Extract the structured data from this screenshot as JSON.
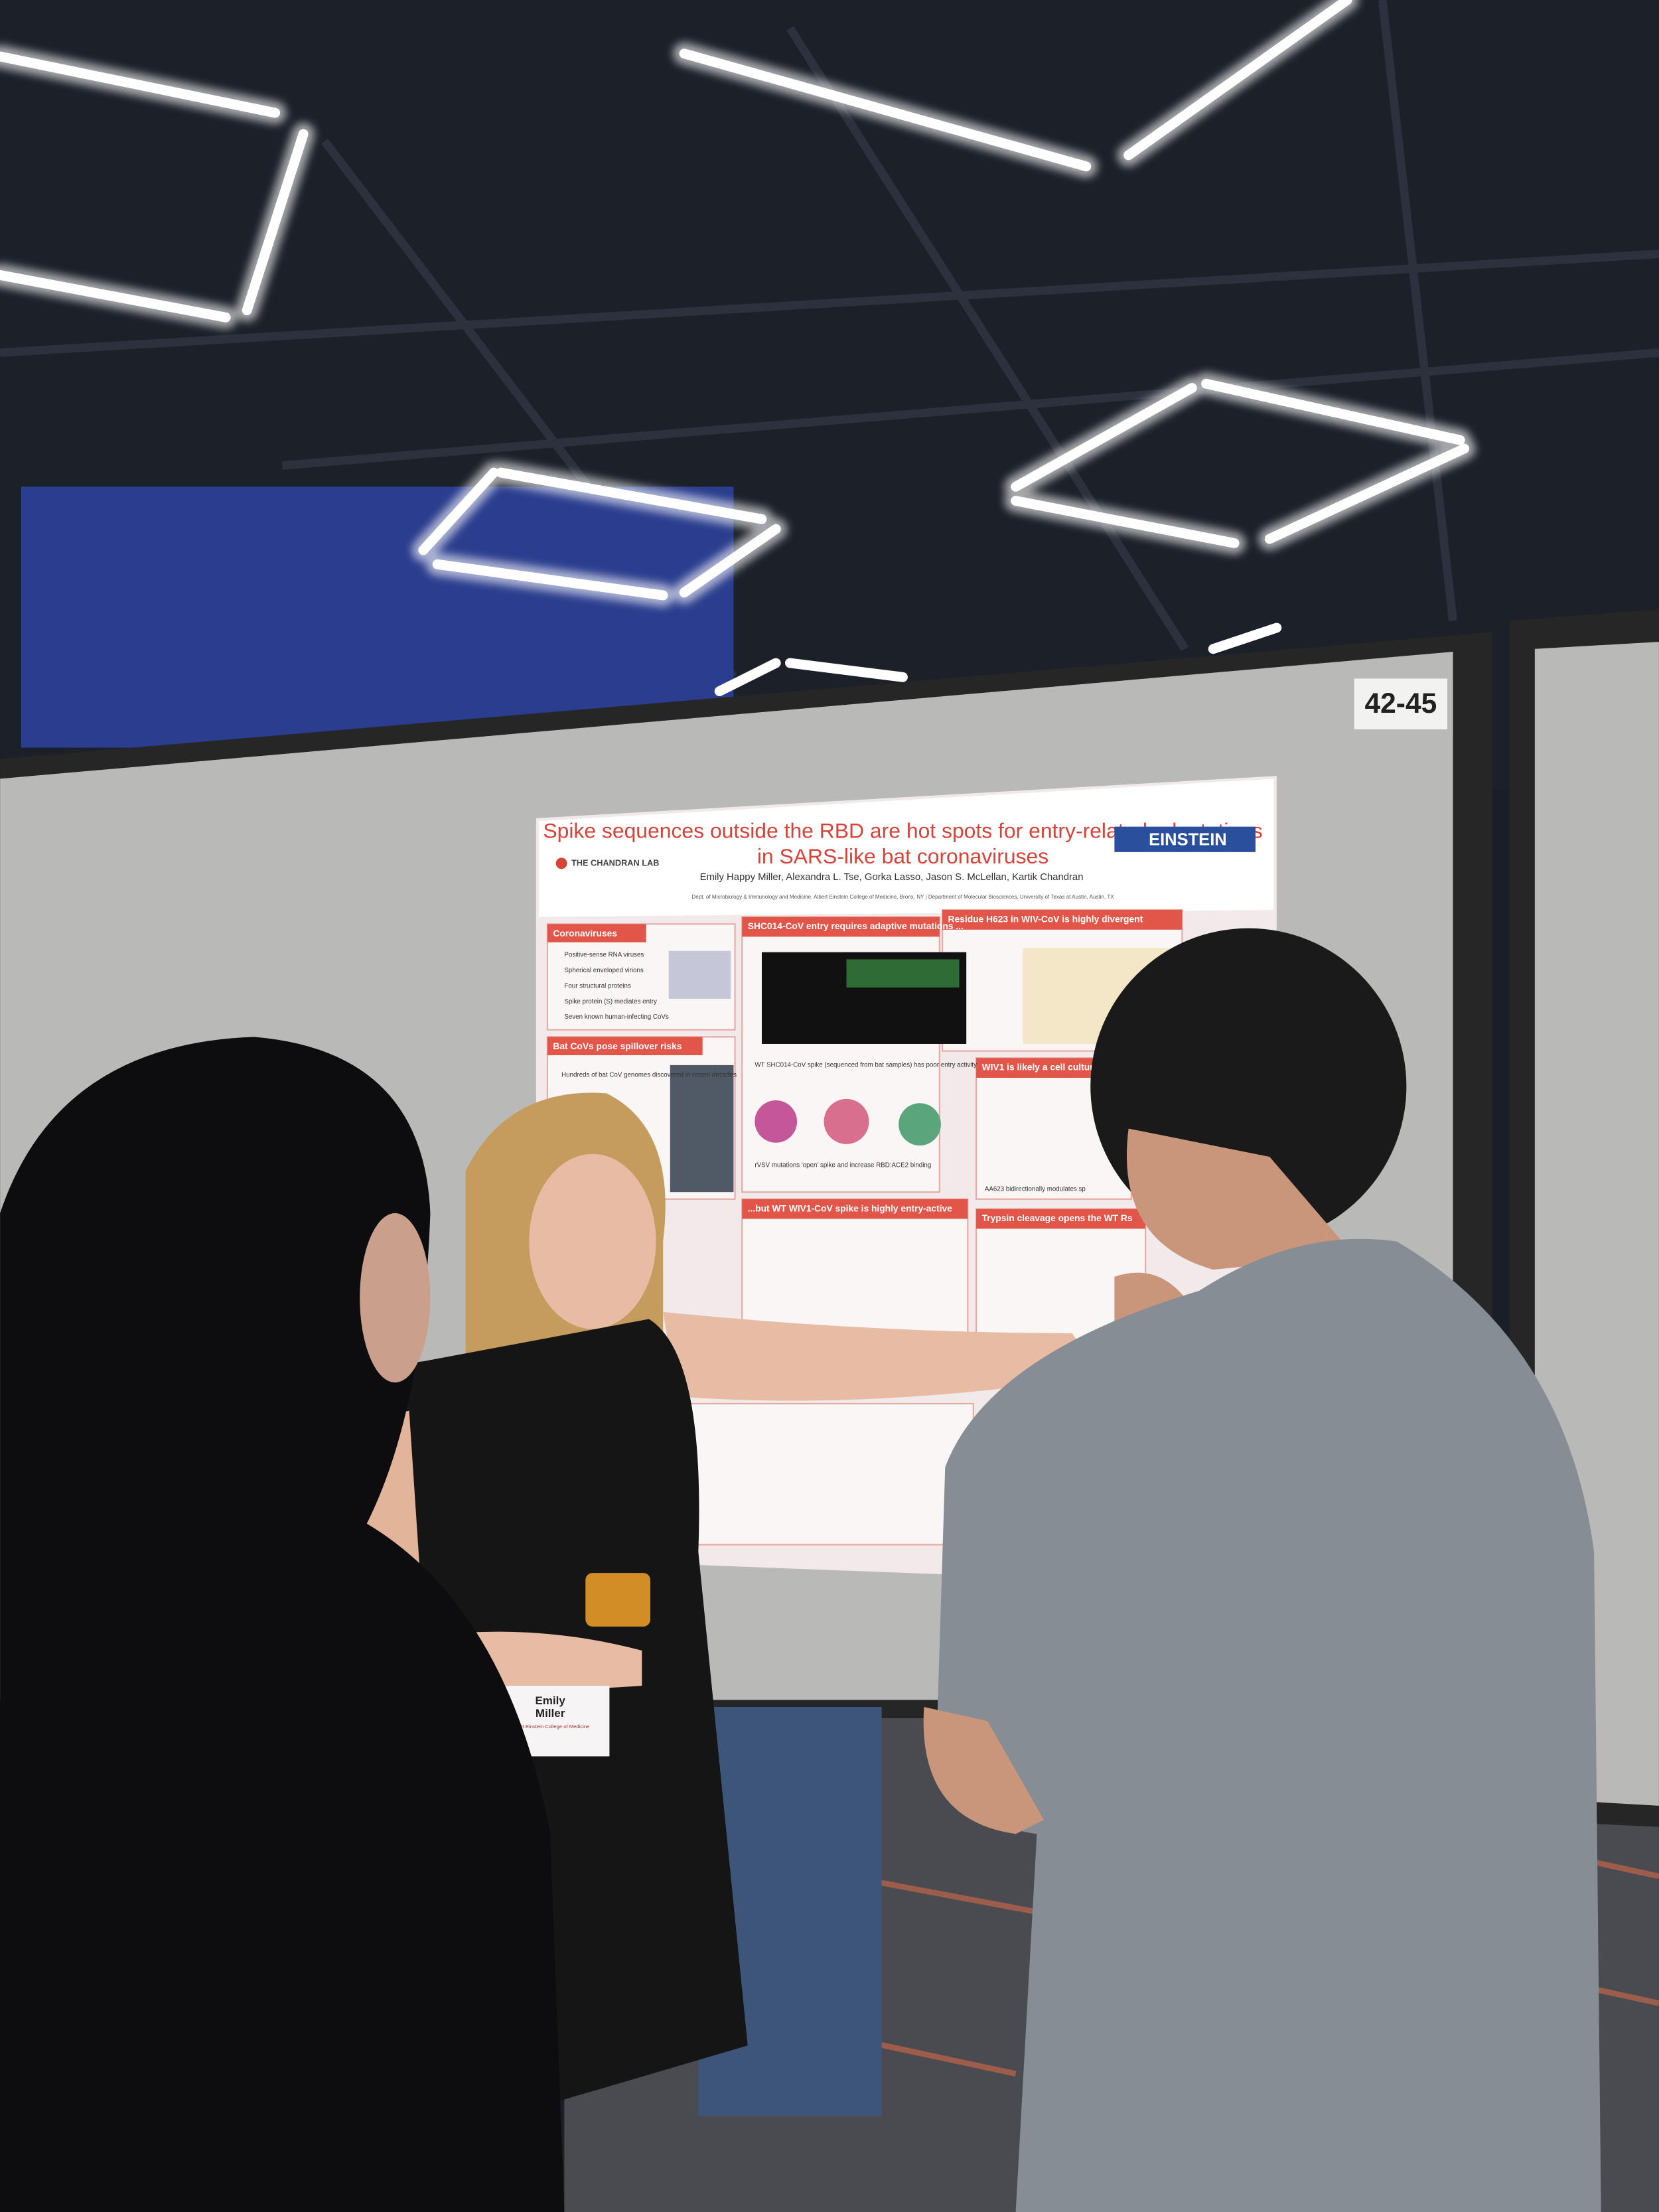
{
  "scene": {
    "board_number": "42-45",
    "poster": {
      "title_lines": [
        "Spike sequences outside the RBD are hot spots for entry-related adaptations",
        "in SARS-like bat coronaviruses"
      ],
      "authors": "Emily Happy Miller, Alexandra L. Tse, Gorka Lasso, Jason S. McLellan, Kartik Chandran",
      "affiliation": "Dept. of Microbiology & Immunology and Medicine, Albert Einstein College of Medicine, Bronx, NY | Department of Molecular Biosciences, University of Texas at Austin, Austin, TX",
      "lab": "THE CHANDRAN LAB",
      "institution": "EINSTEIN",
      "sections": [
        {
          "title": "Coronaviruses",
          "bullets": [
            "Positive-sense RNA viruses",
            "Spherical enveloped virions",
            "Four structural proteins",
            "Spike protein (S) mediates entry",
            "Seven known human-infecting CoVs"
          ]
        },
        {
          "title": "SHC014-CoV entry requires adaptive mutations ...",
          "bullets": [
            "WT SHC014-CoV spike (sequenced from bat samples) has poor entry activity",
            "rVSV mutations 'open' spike and increase RBD:ACE2 binding"
          ]
        },
        {
          "title": "Residue H623 in WIV-CoV is highly divergent",
          "bullets": []
        },
        {
          "title": "Bat CoVs pose spillover risks",
          "bullets": [
            "Hundreds of bat CoV genomes discovered in recent decades"
          ]
        },
        {
          "title": "WIV1 is likely a cell culture-",
          "bullets": [
            "AA623 bidirectionally modulates sp"
          ]
        },
        {
          "title": "...but WT WIV1-CoV spike is highly entry-active",
          "bullets": []
        },
        {
          "title": "Trypsin cleavage opens the WT Rs",
          "bullets": []
        }
      ]
    },
    "badge": {
      "first": "Emily",
      "last": "Miller",
      "org": "Albert Einstein College of Medicine"
    }
  }
}
